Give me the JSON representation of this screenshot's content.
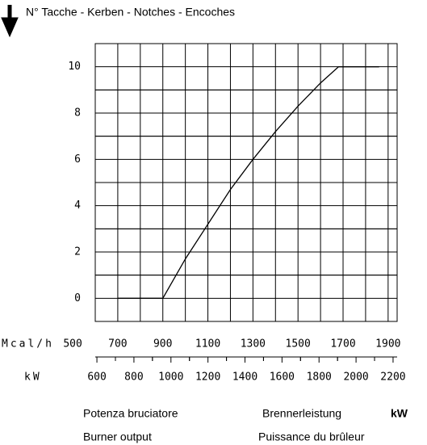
{
  "chart_data": {
    "type": "line",
    "title": "N° Tacche - Kerben - Notches - Encoches",
    "xlabel": "Mcal/h",
    "x2label": "kW",
    "x": [
      700,
      900,
      1000,
      1100,
      1200,
      1300,
      1400,
      1500,
      1600,
      1680,
      1860
    ],
    "series": [
      {
        "name": null,
        "color": "#000000",
        "values": [
          0,
          0,
          1.7,
          3.2,
          4.7,
          6,
          7.2,
          8.3,
          9.3,
          10,
          10
        ]
      }
    ],
    "xlim": [
      600,
      1940
    ],
    "xticks": [
      500,
      700,
      900,
      1100,
      1300,
      1500,
      1700,
      1900
    ],
    "x2lim": [
      591,
      2222
    ],
    "x2ticks": [
      600,
      800,
      1000,
      1200,
      1400,
      1600,
      1800,
      2000,
      2200
    ],
    "ylim": [
      -1,
      11
    ],
    "yticks": [
      0,
      2,
      4,
      6,
      8,
      10
    ],
    "grid": true,
    "captions": {
      "it": "Potenza bruciatore",
      "de": "Brennerleistung",
      "unit": "kW",
      "en": "Burner output",
      "fr": "Puissance du brûleur"
    }
  }
}
